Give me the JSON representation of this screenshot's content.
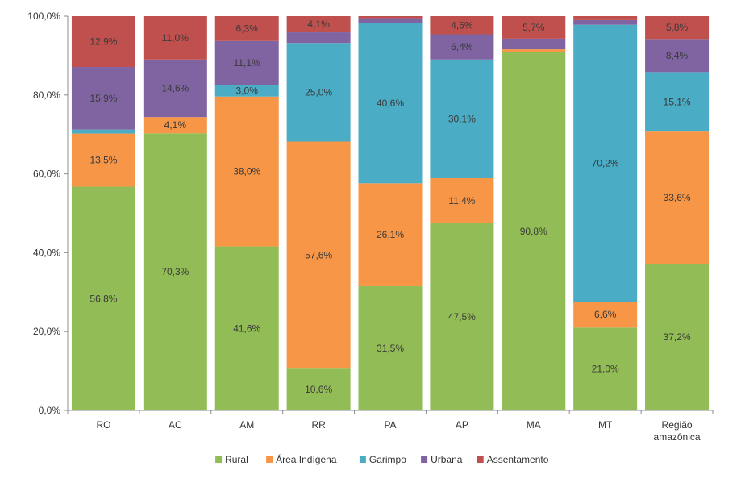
{
  "chart_data": {
    "type": "bar",
    "stacked": true,
    "categories": [
      "RO",
      "AC",
      "AM",
      "RR",
      "PA",
      "AP",
      "MA",
      "MT",
      "Região amazônica"
    ],
    "ylim": [
      0,
      100
    ],
    "yticks": [
      0,
      20,
      40,
      60,
      80,
      100
    ],
    "ytick_labels": [
      "0,0%",
      "20,0%",
      "40,0%",
      "60,0%",
      "80,0%",
      "100,0%"
    ],
    "grid": false,
    "legend_position": "bottom",
    "series": [
      {
        "name": "Rural",
        "color": "#92bc55",
        "values": [
          56.8,
          70.3,
          41.6,
          10.6,
          31.5,
          47.5,
          90.8,
          21.0,
          37.2
        ],
        "labels": [
          "56,8%",
          "70,3%",
          "41,6%",
          "10,6%",
          "31,5%",
          "47,5%",
          "90,8%",
          "21,0%",
          "37,2%"
        ]
      },
      {
        "name": "Área Indígena",
        "color": "#f79646",
        "values": [
          13.5,
          4.1,
          38.0,
          57.6,
          26.1,
          11.4,
          0.8,
          6.6,
          33.6
        ],
        "labels": [
          "13,5%",
          "4,1%",
          "38,0%",
          "57,6%",
          "26,1%",
          "11,4%",
          "",
          "6,6%",
          "33,6%"
        ]
      },
      {
        "name": "Garimpo",
        "color": "#4bacc6",
        "values": [
          1.0,
          0.0,
          3.0,
          25.0,
          40.6,
          30.1,
          0.0,
          70.2,
          15.1
        ],
        "labels": [
          "",
          "",
          "3,0%",
          "25,0%",
          "40,6%",
          "30,1%",
          "",
          "70,2%",
          "15,1%"
        ]
      },
      {
        "name": "Urbana",
        "color": "#8064a2",
        "values": [
          15.9,
          14.6,
          11.1,
          2.7,
          1.3,
          6.4,
          2.7,
          1.2,
          8.4
        ],
        "labels": [
          "15,9%",
          "14,6%",
          "11,1%",
          "",
          "",
          "6,4%",
          "",
          "",
          "8,4%"
        ]
      },
      {
        "name": "Assentamento",
        "color": "#c0504d",
        "values": [
          12.9,
          11.0,
          6.3,
          4.1,
          0.5,
          4.6,
          5.7,
          1.0,
          5.8
        ],
        "labels": [
          "12,9%",
          "11,0%",
          "6,3%",
          "4,1%",
          "",
          "4,6%",
          "5,7%",
          "",
          "5,8%"
        ]
      }
    ]
  }
}
